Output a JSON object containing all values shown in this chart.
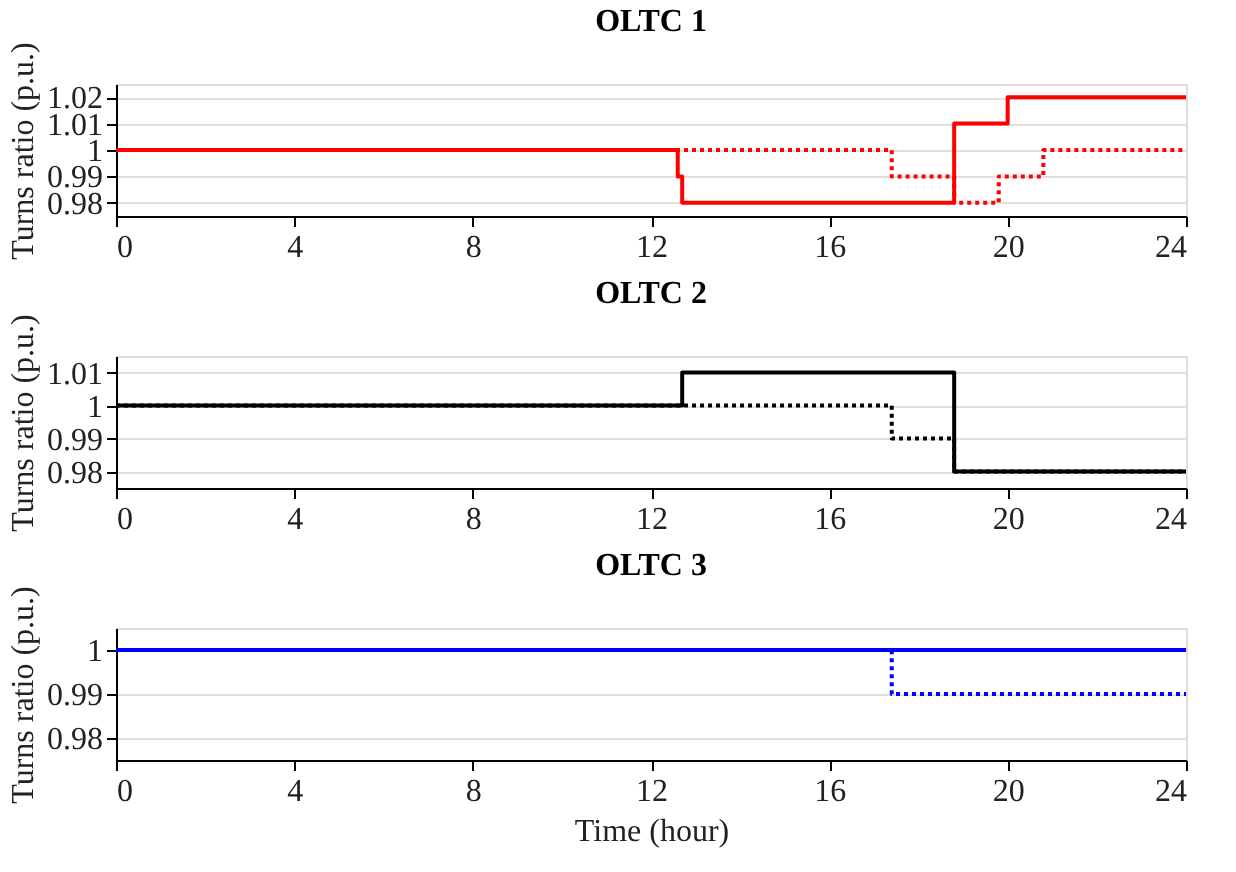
{
  "chart_data": [
    {
      "type": "step",
      "title": "OLTC 1",
      "ylabel": "Turns ratio (p.u.)",
      "xlim": [
        0,
        24
      ],
      "xticks": [
        0,
        4,
        8,
        12,
        16,
        20,
        24
      ],
      "ylim": [
        0.975,
        1.025
      ],
      "yticks": [
        0.98,
        0.99,
        1,
        1.01,
        1.02
      ],
      "grid": "y",
      "series": [
        {
          "color": "#ff0000",
          "line_style": "solid",
          "x": [
            0,
            12.6,
            12.7,
            18.8,
            20,
            24
          ],
          "values": [
            1,
            0.99,
            0.98,
            1.01,
            1.02,
            1.02
          ]
        },
        {
          "color": "#ff0000",
          "line_style": "dotted",
          "x": [
            0,
            17.4,
            18.8,
            19.8,
            20.8,
            24
          ],
          "values": [
            1,
            0.99,
            0.98,
            0.99,
            1,
            1
          ]
        }
      ]
    },
    {
      "type": "step",
      "title": "OLTC 2",
      "ylabel": "Turns ratio (p.u.)",
      "xlim": [
        0,
        24
      ],
      "xticks": [
        0,
        4,
        8,
        12,
        16,
        20,
        24
      ],
      "ylim": [
        0.975,
        1.015
      ],
      "yticks": [
        0.98,
        0.99,
        1,
        1.01
      ],
      "grid": "y",
      "series": [
        {
          "color": "#000000",
          "line_style": "solid",
          "x": [
            0,
            12.7,
            18.8,
            24
          ],
          "values": [
            1,
            1.01,
            0.98,
            0.98
          ]
        },
        {
          "color": "#000000",
          "line_style": "dotted",
          "x": [
            0,
            17.4,
            18.8,
            24
          ],
          "values": [
            1,
            0.99,
            0.98,
            0.98
          ]
        }
      ]
    },
    {
      "type": "step",
      "title": "OLTC 3",
      "xlabel": "Time (hour)",
      "ylabel": "Turns ratio (p.u.)",
      "xlim": [
        0,
        24
      ],
      "xticks": [
        0,
        4,
        8,
        12,
        16,
        20,
        24
      ],
      "ylim": [
        0.975,
        1.005
      ],
      "yticks": [
        0.98,
        0.99,
        1
      ],
      "grid": "y",
      "series": [
        {
          "color": "#0000ff",
          "line_style": "solid",
          "x": [
            0,
            24
          ],
          "values": [
            1,
            1
          ]
        },
        {
          "color": "#0000ff",
          "line_style": "dotted",
          "x": [
            0,
            17.4,
            24
          ],
          "values": [
            1,
            0.99,
            0.99
          ]
        }
      ]
    }
  ]
}
